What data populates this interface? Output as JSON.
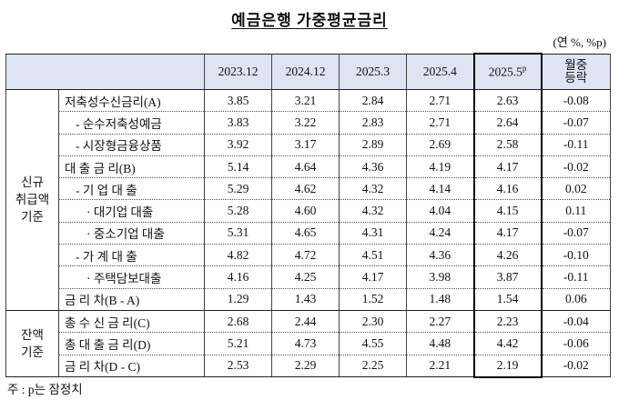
{
  "title": "예금은행 가중평균금리",
  "unit": "(연 %, %p)",
  "table": {
    "header": [
      {
        "text": "2023.12"
      },
      {
        "text": "2024.12"
      },
      {
        "text": "2025.3"
      },
      {
        "text": "2025.4"
      },
      {
        "text": "2025.5",
        "sup": "p"
      },
      {
        "lines": [
          "월중",
          "등락"
        ]
      }
    ],
    "groups": [
      {
        "label": [
          "신규",
          "취급액",
          "기준"
        ],
        "rows": [
          {
            "label": "저축성수신금리(A)",
            "values": [
              "3.85",
              "3.21",
              "2.84",
              "2.71",
              "2.63",
              "-0.08"
            ]
          },
          {
            "label": "- 순수저축성예금",
            "values": [
              "3.83",
              "3.22",
              "2.83",
              "2.71",
              "2.64",
              "-0.07"
            ]
          },
          {
            "label": "- 시장형금융상품",
            "values": [
              "3.92",
              "3.17",
              "2.89",
              "2.69",
              "2.58",
              "-0.11"
            ]
          },
          {
            "label": "대 출 금 리(B)",
            "values": [
              "5.14",
              "4.64",
              "4.36",
              "4.19",
              "4.17",
              "-0.02"
            ]
          },
          {
            "label": "- 기 업 대 출",
            "values": [
              "5.29",
              "4.62",
              "4.32",
              "4.14",
              "4.16",
              "0.02"
            ]
          },
          {
            "label": "· 대기업 대출",
            "values": [
              "5.28",
              "4.60",
              "4.32",
              "4.04",
              "4.15",
              "0.11"
            ]
          },
          {
            "label": "· 중소기업 대출",
            "values": [
              "5.31",
              "4.65",
              "4.31",
              "4.24",
              "4.17",
              "-0.07"
            ]
          },
          {
            "label": "- 가 계 대 출",
            "values": [
              "4.82",
              "4.72",
              "4.51",
              "4.36",
              "4.26",
              "-0.10"
            ]
          },
          {
            "label": "· 주택담보대출",
            "values": [
              "4.16",
              "4.25",
              "4.17",
              "3.98",
              "3.87",
              "-0.11"
            ]
          },
          {
            "label": "금 리 차(B - A)",
            "values": [
              "1.29",
              "1.43",
              "1.52",
              "1.48",
              "1.54",
              "0.06"
            ]
          }
        ]
      },
      {
        "label": [
          "잔액",
          "기준"
        ],
        "rows": [
          {
            "label": "총 수 신 금 리(C)",
            "values": [
              "2.68",
              "2.44",
              "2.30",
              "2.27",
              "2.23",
              "-0.04"
            ]
          },
          {
            "label": "총 대 출 금 리(D)",
            "values": [
              "5.21",
              "4.73",
              "4.55",
              "4.48",
              "4.42",
              "-0.06"
            ]
          },
          {
            "label": "금 리 차(D - C)",
            "values": [
              "2.53",
              "2.29",
              "2.25",
              "2.21",
              "2.19",
              "-0.02"
            ]
          }
        ]
      }
    ]
  },
  "note": "주 : p는 잠정치"
}
